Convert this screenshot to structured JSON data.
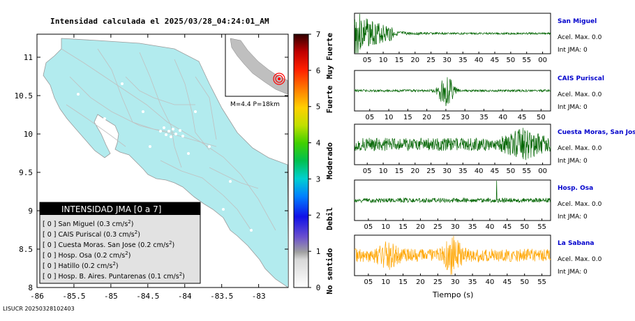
{
  "map": {
    "title": "Intensidad calculada el 2025/03/28_04:24:01_AM",
    "x_ticks": [
      "-86",
      "-85.5",
      "-85",
      "-84.5",
      "-84",
      "-83.5",
      "-83"
    ],
    "y_ticks": [
      "8",
      "8.5",
      "9",
      "9.5",
      "10",
      "10.5",
      "11"
    ],
    "inset_label": "M=4.4 P=18km",
    "legend_title": "INTENSIDAD JMA [0 a 7]",
    "legend_entries": [
      {
        "level": "[ 0 ]",
        "name": "San Miguel (0.3 cm/s",
        "sup": "2",
        "tail": ")"
      },
      {
        "level": "[ 0 ]",
        "name": "CAIS Puriscal (0.3 cm/s",
        "sup": "2",
        "tail": ")"
      },
      {
        "level": "[ 0 ]",
        "name": "Cuesta Moras. San Jose (0.2 cm/s",
        "sup": "2",
        "tail": ")"
      },
      {
        "level": "[ 0 ]",
        "name": "Hosp. Osa (0.2 cm/s",
        "sup": "2",
        "tail": ")"
      },
      {
        "level": "[ 0 ]",
        "name": "Hatillo (0.2 cm/s",
        "sup": "2",
        "tail": ")"
      },
      {
        "level": "[ 0 ]",
        "name": "Hosp. B. Aires. Puntarenas (0.1 cm/s",
        "sup": "2",
        "tail": ")"
      }
    ]
  },
  "colorbar": {
    "ticks": [
      "0",
      "1",
      "2",
      "3",
      "4",
      "5",
      "6",
      "7"
    ],
    "labels": [
      "No sentido",
      "Debil",
      "Moderado",
      "Fuerte",
      "Muy Fuerte"
    ]
  },
  "footer": "LISUCR 20250328102403",
  "seismograms": {
    "xlabel": "Tiempo (s)",
    "waveform_colors": {
      "normal": "#006400",
      "highlight": "#ffa500"
    },
    "traces": [
      {
        "station": "San Miguel",
        "accel": "Acel. Max. 0.0",
        "int": "Int JMA: 0",
        "color": "#006400",
        "ticks": [
          "05",
          "10",
          "15",
          "20",
          "25",
          "30",
          "35",
          "40",
          "45",
          "50",
          "55",
          "00"
        ]
      },
      {
        "station": "CAIS Puriscal",
        "accel": "Acel. Max. 0.0",
        "int": "Int JMA: 0",
        "color": "#006400",
        "ticks": [
          "05",
          "10",
          "15",
          "20",
          "25",
          "30",
          "35",
          "40",
          "45",
          "50"
        ]
      },
      {
        "station": "Cuesta Moras, San Jose",
        "accel": "Acel. Max. 0.0",
        "int": "Int JMA: 0",
        "color": "#006400",
        "ticks": [
          "05",
          "10",
          "15",
          "20",
          "25",
          "30",
          "35",
          "40",
          "45",
          "50",
          "55",
          "00"
        ]
      },
      {
        "station": "Hosp. Osa",
        "accel": "Acel. Max. 0.0",
        "int": "Int JMA: 0",
        "color": "#006400",
        "ticks": [
          "05",
          "10",
          "15",
          "20",
          "25",
          "30",
          "35",
          "40",
          "45",
          "50",
          "55"
        ]
      },
      {
        "station": "La Sabana",
        "accel": "Acel. Max. 0.0",
        "int": "Int JMA: 0",
        "color": "#ffa500",
        "ticks": [
          "05",
          "10",
          "15",
          "20",
          "25",
          "30",
          "35",
          "40",
          "45",
          "50",
          "55"
        ]
      }
    ]
  },
  "chart_data": [
    {
      "type": "map",
      "title": "Intensidad calculada el 2025/03/28_04:24:01_AM",
      "xlim": [
        -86,
        -82.6
      ],
      "ylim": [
        8,
        11.3
      ],
      "annotation": "M=4.4 P=18km",
      "legend": "bottom-left"
    },
    {
      "type": "colorbar",
      "ylim": [
        0,
        7
      ]
    },
    {
      "type": "line",
      "title": "",
      "xlabel": "Tiempo (s)",
      "series": [
        {
          "name": "San Miguel"
        },
        {
          "name": "CAIS Puriscal"
        },
        {
          "name": "Cuesta Moras, San Jose"
        },
        {
          "name": "Hosp. Osa"
        },
        {
          "name": "La Sabana"
        }
      ]
    }
  ]
}
